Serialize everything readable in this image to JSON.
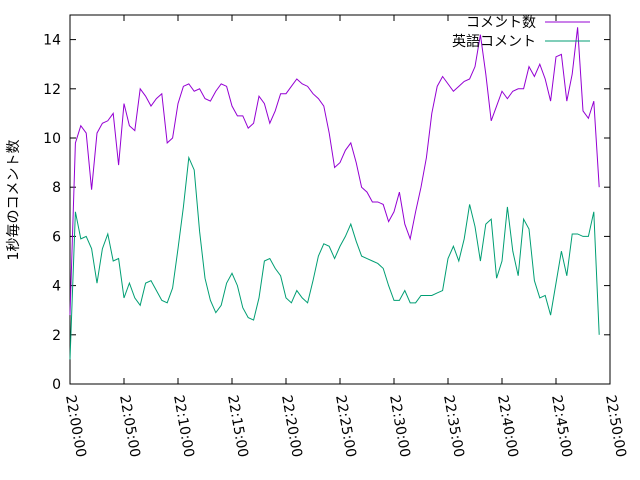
{
  "chart_data": {
    "type": "line",
    "y_label": "1秒毎のコメント数",
    "x": [
      "22:00:00",
      "22:00:30",
      "22:01:00",
      "22:01:30",
      "22:02:00",
      "22:02:30",
      "22:03:00",
      "22:03:30",
      "22:04:00",
      "22:04:30",
      "22:05:00",
      "22:05:30",
      "22:06:00",
      "22:06:30",
      "22:07:00",
      "22:07:30",
      "22:08:00",
      "22:08:30",
      "22:09:00",
      "22:09:30",
      "22:10:00",
      "22:10:30",
      "22:11:00",
      "22:11:30",
      "22:12:00",
      "22:12:30",
      "22:13:00",
      "22:13:30",
      "22:14:00",
      "22:14:30",
      "22:15:00",
      "22:15:30",
      "22:16:00",
      "22:16:30",
      "22:17:00",
      "22:17:30",
      "22:18:00",
      "22:18:30",
      "22:19:00",
      "22:19:30",
      "22:20:00",
      "22:20:30",
      "22:21:00",
      "22:21:30",
      "22:22:00",
      "22:22:30",
      "22:23:00",
      "22:23:30",
      "22:24:00",
      "22:24:30",
      "22:25:00",
      "22:25:30",
      "22:26:00",
      "22:26:30",
      "22:27:00",
      "22:27:30",
      "22:28:00",
      "22:28:30",
      "22:29:00",
      "22:29:30",
      "22:30:00",
      "22:30:30",
      "22:31:00",
      "22:31:30",
      "22:32:00",
      "22:32:30",
      "22:33:00",
      "22:33:30",
      "22:34:00",
      "22:34:30",
      "22:35:00",
      "22:35:30",
      "22:36:00",
      "22:36:30",
      "22:37:00",
      "22:37:30",
      "22:38:00",
      "22:38:30",
      "22:39:00",
      "22:39:30",
      "22:40:00",
      "22:40:30",
      "22:41:00",
      "22:41:30",
      "22:42:00",
      "22:42:30",
      "22:43:00",
      "22:43:30",
      "22:44:00",
      "22:44:30",
      "22:45:00",
      "22:45:30",
      "22:46:00",
      "22:46:30",
      "22:47:00",
      "22:47:30",
      "22:48:00",
      "22:48:30",
      "22:49:00"
    ],
    "series": [
      {
        "name": "コメント数",
        "color": "#9400d3",
        "values": [
          2.8,
          9.8,
          10.5,
          10.2,
          7.9,
          10.2,
          10.6,
          10.7,
          11.0,
          8.9,
          11.4,
          10.5,
          10.3,
          12.0,
          11.7,
          11.3,
          11.6,
          11.8,
          9.8,
          10.0,
          11.4,
          12.1,
          12.2,
          11.9,
          12.0,
          11.6,
          11.5,
          11.9,
          12.2,
          12.1,
          11.3,
          10.9,
          10.9,
          10.4,
          10.6,
          11.7,
          11.4,
          10.6,
          11.1,
          11.8,
          11.8,
          12.1,
          12.4,
          12.2,
          12.1,
          11.8,
          11.6,
          11.3,
          10.2,
          8.8,
          9.0,
          9.5,
          9.8,
          9.0,
          8.0,
          7.8,
          7.4,
          7.4,
          7.3,
          6.6,
          7.0,
          7.8,
          6.5,
          5.9,
          7.0,
          8.0,
          9.2,
          11.0,
          12.1,
          12.5,
          12.2,
          11.9,
          12.1,
          12.3,
          12.4,
          12.9,
          14.2,
          12.6,
          10.7,
          11.3,
          11.9,
          11.6,
          11.9,
          12.0,
          12.0,
          12.9,
          12.5,
          13.0,
          12.4,
          11.5,
          13.3,
          13.4,
          11.5,
          12.6,
          14.5,
          11.1,
          10.8,
          11.5,
          8.0
        ]
      },
      {
        "name": "英語コメント",
        "color": "#009e73",
        "values": [
          1.0,
          7.0,
          5.9,
          6.0,
          5.5,
          4.1,
          5.5,
          6.1,
          5.0,
          5.1,
          3.5,
          4.1,
          3.5,
          3.2,
          4.1,
          4.2,
          3.8,
          3.4,
          3.3,
          3.9,
          5.5,
          7.2,
          9.2,
          8.7,
          6.2,
          4.3,
          3.4,
          2.9,
          3.2,
          4.1,
          4.5,
          4.0,
          3.1,
          2.7,
          2.6,
          3.5,
          5.0,
          5.1,
          4.7,
          4.4,
          3.5,
          3.3,
          3.8,
          3.5,
          3.3,
          4.2,
          5.2,
          5.7,
          5.6,
          5.1,
          5.6,
          6.0,
          6.5,
          5.8,
          5.2,
          5.1,
          5.0,
          4.9,
          4.7,
          4.0,
          3.4,
          3.4,
          3.8,
          3.3,
          3.3,
          3.6,
          3.6,
          3.6,
          3.7,
          3.8,
          5.1,
          5.6,
          5.0,
          5.9,
          7.3,
          6.4,
          5.0,
          6.5,
          6.7,
          4.3,
          5.0,
          7.2,
          5.4,
          4.4,
          6.7,
          6.3,
          4.2,
          3.5,
          3.6,
          2.8,
          4.1,
          5.4,
          4.4,
          6.1,
          6.1,
          6.0,
          6.0,
          7.0,
          2.0
        ]
      }
    ],
    "xlim": [
      "22:00:00",
      "22:50:00"
    ],
    "xticks": [
      "22:00:00",
      "22:05:00",
      "22:10:00",
      "22:15:00",
      "22:20:00",
      "22:25:00",
      "22:30:00",
      "22:35:00",
      "22:40:00",
      "22:45:00",
      "22:50:00"
    ],
    "ylim": [
      0,
      15
    ],
    "yticks": [
      0,
      2,
      4,
      6,
      8,
      10,
      12,
      14
    ],
    "legend": "top-right",
    "grid": false
  }
}
